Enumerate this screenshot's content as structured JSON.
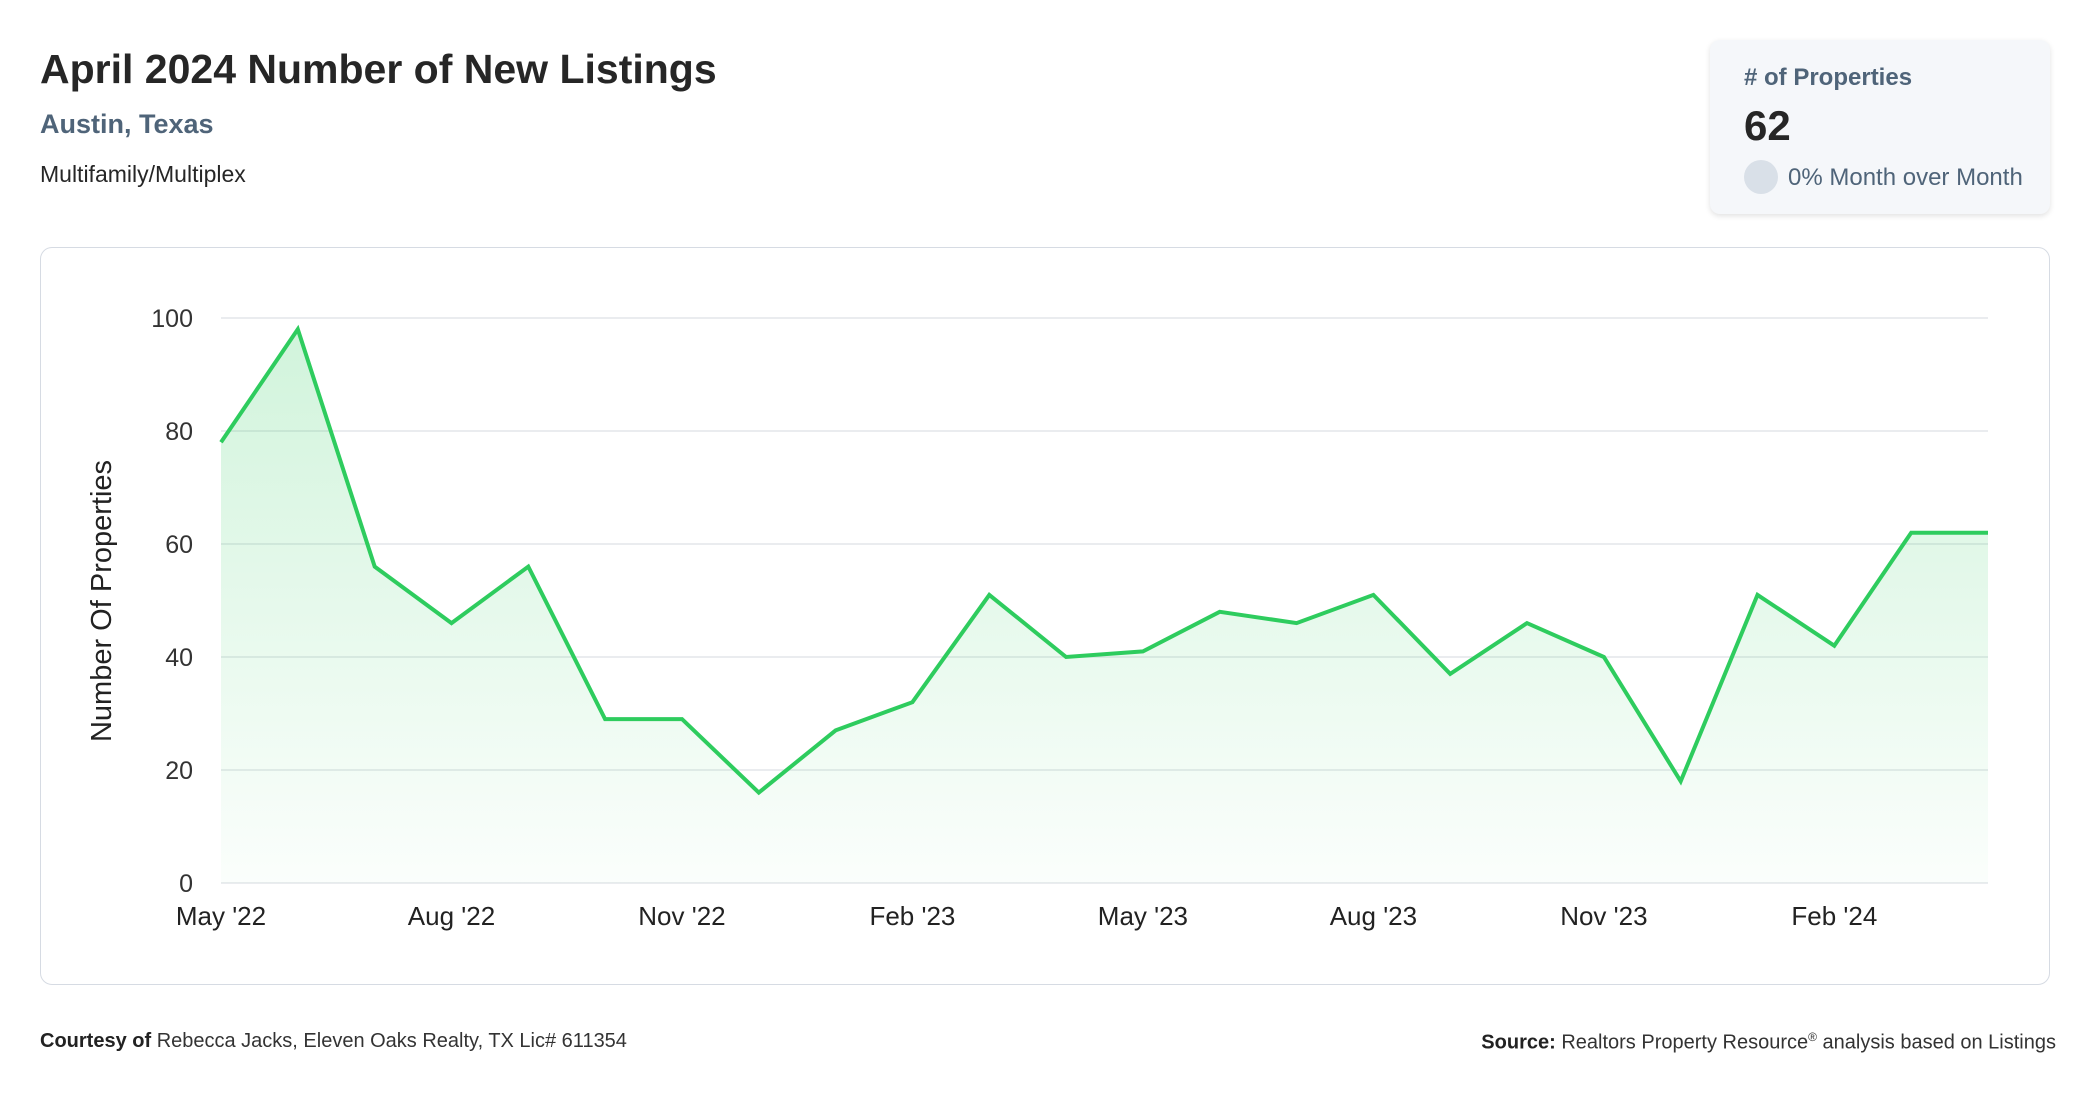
{
  "header": {
    "title": "April 2024 Number of New Listings",
    "location": "Austin, Texas",
    "property_type": "Multifamily/Multiplex"
  },
  "kpi": {
    "label": "# of Properties",
    "value": "62",
    "change": "0% Month over Month"
  },
  "footer": {
    "courtesy_label": "Courtesy of",
    "courtesy_text": "Rebecca Jacks, Eleven Oaks Realty, TX Lic# 611354",
    "source_label": "Source:",
    "source_text_1": "Realtors Property Resource",
    "source_reg": "®",
    "source_text_2": " analysis based on Listings"
  },
  "colors": {
    "line": "#2ecc5e",
    "fill": "#2ecc5e",
    "grid": "#e3e6ea",
    "axis_text": "#333333"
  },
  "chart_data": {
    "type": "area",
    "ylabel": "Number Of Properties",
    "xlabel": "",
    "ylim": [
      0,
      100
    ],
    "yticks": [
      0,
      20,
      40,
      60,
      80,
      100
    ],
    "grid": true,
    "x": [
      "May '22",
      "Jun '22",
      "Jul '22",
      "Aug '22",
      "Sep '22",
      "Oct '22",
      "Nov '22",
      "Dec '22",
      "Jan '23",
      "Feb '23",
      "Mar '23",
      "Apr '23",
      "May '23",
      "Jun '23",
      "Jul '23",
      "Aug '23",
      "Sep '23",
      "Oct '23",
      "Nov '23",
      "Dec '23",
      "Jan '24",
      "Feb '24",
      "Mar '24",
      "Apr '24"
    ],
    "x_tick_labels": [
      "May '22",
      "Aug '22",
      "Nov '22",
      "Feb '23",
      "May '23",
      "Aug '23",
      "Nov '23",
      "Feb '24"
    ],
    "series": [
      {
        "values": [
          78,
          98,
          56,
          46,
          56,
          29,
          29,
          16,
          27,
          32,
          51,
          40,
          41,
          48,
          46,
          51,
          37,
          46,
          40,
          18,
          51,
          42,
          62,
          62
        ]
      }
    ]
  }
}
